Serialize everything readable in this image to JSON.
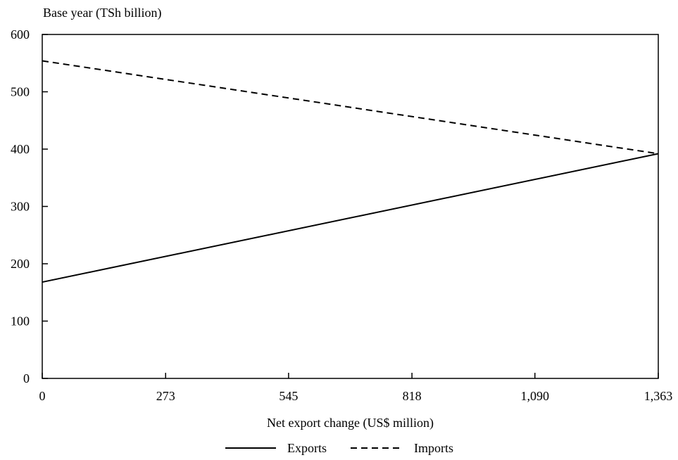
{
  "chart_data": {
    "type": "line",
    "ylabel": "Base year (TSh billion)",
    "xlabel": "Net export change (US$ million)",
    "x_ticks": [
      "0",
      "273",
      "545",
      "818",
      "1,090",
      "1,363"
    ],
    "x_tick_values": [
      0,
      273,
      545,
      818,
      1090,
      1363
    ],
    "y_ticks": [
      "0",
      "100",
      "200",
      "300",
      "400",
      "500",
      "600"
    ],
    "y_tick_values": [
      0,
      100,
      200,
      300,
      400,
      500,
      600
    ],
    "xlim": [
      0,
      1363
    ],
    "ylim": [
      0,
      600
    ],
    "grid": false,
    "legend_position": "bottom-center",
    "series": [
      {
        "name": "Exports",
        "style": "solid",
        "color": "#000000",
        "x": [
          0,
          1363
        ],
        "y": [
          168,
          392
        ]
      },
      {
        "name": "Imports",
        "style": "dashed",
        "color": "#000000",
        "x": [
          0,
          1363
        ],
        "y": [
          554,
          392
        ]
      }
    ]
  }
}
